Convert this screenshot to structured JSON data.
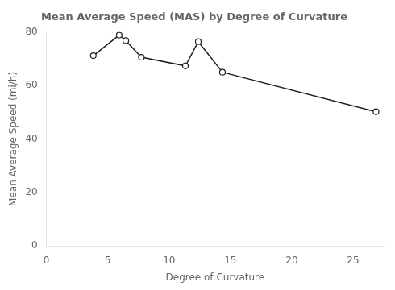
{
  "chart_data": {
    "type": "line",
    "title": "Mean Average Speed (MAS) by Degree of Curvature",
    "xlabel": "Degree of Curvature",
    "ylabel": "Mean Average Speed (mi/h)",
    "x": [
      3.82,
      5.93,
      6.47,
      7.74,
      11.33,
      12.38,
      14.35,
      26.87
    ],
    "values": [
      71.12,
      78.81,
      76.73,
      70.53,
      67.29,
      76.35,
      64.93,
      50.16
    ],
    "xlim": [
      0,
      27.5
    ],
    "ylim": [
      0,
      80
    ],
    "xticks": [
      0,
      5,
      10,
      15,
      20,
      25
    ],
    "yticks": [
      0,
      20,
      40,
      60,
      80
    ],
    "color": "#222222",
    "marker": "circle",
    "grid": false
  }
}
